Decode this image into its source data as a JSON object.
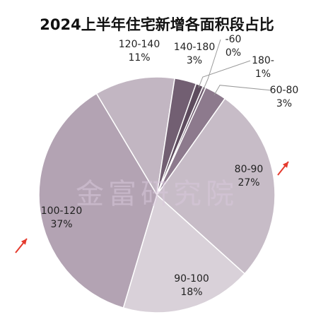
{
  "chart_data": {
    "type": "pie",
    "title": "2024上半年住宅新增各面积段占比",
    "slices": [
      {
        "label": "-60",
        "percent": "0%",
        "value": 0.4,
        "color": "#6e5a6e"
      },
      {
        "label": "60-80",
        "percent": "3%",
        "value": 3.0,
        "color": "#8d7a8d"
      },
      {
        "label": "80-90",
        "percent": "27%",
        "value": 27.0,
        "color": "#c7bcc7"
      },
      {
        "label": "90-100",
        "percent": "18%",
        "value": 18.0,
        "color": "#d9d1d9"
      },
      {
        "label": "100-120",
        "percent": "37%",
        "value": 37.0,
        "color": "#b3a3b3"
      },
      {
        "label": "120-140",
        "percent": "11%",
        "value": 11.0,
        "color": "#c2b6c2"
      },
      {
        "label": "140-180",
        "percent": "3%",
        "value": 3.0,
        "color": "#725f72"
      },
      {
        "label": "180-",
        "percent": "1%",
        "value": 1.0,
        "color": "#5e4c5e"
      }
    ],
    "legend": "none",
    "data_labels": "category and percent",
    "arrow_color": "#e53b2e"
  },
  "watermark": "金富研究院"
}
